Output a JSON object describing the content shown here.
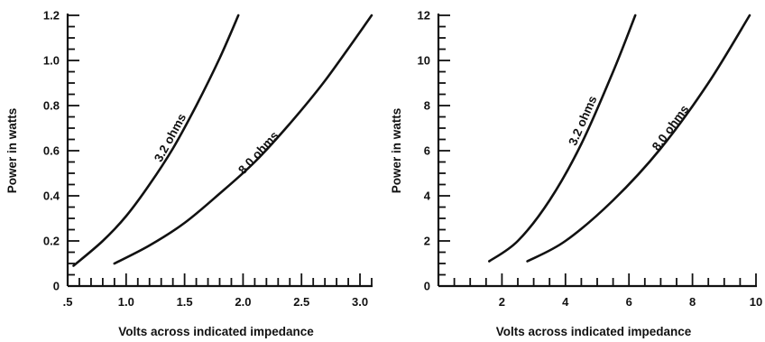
{
  "chart_data": [
    {
      "type": "line",
      "xlabel": "Volts across indicated impedance",
      "ylabel": "Power in watts",
      "xlim": [
        0.5,
        3.1
      ],
      "ylim": [
        0,
        1.2
      ],
      "x_ticks": [
        0.5,
        1.0,
        1.5,
        2.0,
        2.5,
        3.0
      ],
      "x_tick_labels": [
        ".5",
        "1.0",
        "1.5",
        "2.0",
        "2.5",
        "3.0"
      ],
      "x_minor_step": 0.1,
      "y_ticks": [
        0,
        0.2,
        0.4,
        0.6,
        0.8,
        1.0,
        1.2
      ],
      "y_tick_labels": [
        "0",
        "0.2",
        "0.4",
        "0.6",
        "0.8",
        "1.0",
        "1.2"
      ],
      "y_minor_step": 0.05,
      "grid": false,
      "series": [
        {
          "name": "3.2 ohms",
          "impedance": 3.2,
          "x": [
            0.55,
            0.8,
            1.0,
            1.2,
            1.4,
            1.6,
            1.8,
            1.96
          ],
          "y": [
            0.09,
            0.2,
            0.31,
            0.45,
            0.61,
            0.8,
            1.01,
            1.2
          ]
        },
        {
          "name": "8.0 ohms",
          "impedance": 8.0,
          "x": [
            0.9,
            1.2,
            1.5,
            1.8,
            2.1,
            2.4,
            2.7,
            3.1
          ],
          "y": [
            0.1,
            0.18,
            0.28,
            0.41,
            0.55,
            0.72,
            0.91,
            1.2
          ]
        }
      ]
    },
    {
      "type": "line",
      "xlabel": "Volts across indicated impedance",
      "ylabel": "Power in watts",
      "xlim": [
        0,
        10
      ],
      "ylim": [
        0,
        12
      ],
      "x_ticks": [
        2,
        4,
        6,
        8,
        10
      ],
      "x_tick_labels": [
        "2",
        "4",
        "6",
        "8",
        "10"
      ],
      "x_minor_step": 0.5,
      "y_ticks": [
        0,
        2,
        4,
        6,
        8,
        10,
        12
      ],
      "y_tick_labels": [
        "0",
        "2",
        "4",
        "6",
        "8",
        "10",
        "12"
      ],
      "y_minor_step": 0.5,
      "grid": false,
      "series": [
        {
          "name": "3.2 ohms",
          "impedance": 3.2,
          "x": [
            1.6,
            2.5,
            3.5,
            4.5,
            5.5,
            6.2
          ],
          "y": [
            1.1,
            2.0,
            3.8,
            6.3,
            9.5,
            12.0
          ]
        },
        {
          "name": "8.0 ohms",
          "impedance": 8.0,
          "x": [
            2.8,
            4.0,
            5.5,
            7.0,
            8.5,
            9.8
          ],
          "y": [
            1.1,
            2.0,
            3.8,
            6.1,
            9.0,
            12.0
          ]
        }
      ]
    }
  ]
}
